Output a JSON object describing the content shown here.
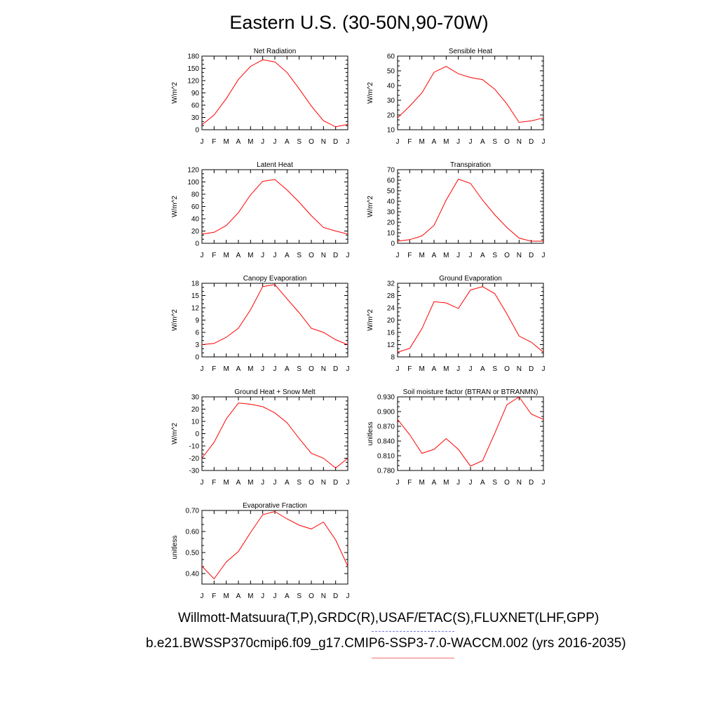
{
  "figure": {
    "title": "Eastern U.S. (30-50N,90-70W)",
    "caption_obs": "Willmott-Matsuura(T,P),GRDC(R),USAF/ETAC(S),FLUXNET(LHF,GPP)",
    "caption_model": "b.e21.BWSSP370cmip6.f09_g17.CMIP6-SSP3-7.0-WACCM.002 (yrs 2016-2035)",
    "colors": {
      "model_line": "#ff0000",
      "obs_legend": "#7a7ae8",
      "model_legend": "#f07070"
    }
  },
  "chart_data": [
    {
      "type": "line",
      "title": "Net Radiation",
      "ylabel": "W/m^2",
      "categories": [
        "J",
        "F",
        "M",
        "A",
        "M",
        "J",
        "J",
        "A",
        "S",
        "O",
        "N",
        "D",
        "J"
      ],
      "values": [
        12,
        36,
        76,
        123,
        155,
        171,
        166,
        140,
        100,
        58,
        22,
        7,
        13
      ],
      "ylim": [
        0,
        180
      ],
      "yticks": [
        "0",
        "30",
        "60",
        "90",
        "120",
        "150",
        "180"
      ],
      "ytick_values": [
        0,
        30,
        60,
        90,
        120,
        150,
        180
      ]
    },
    {
      "type": "line",
      "title": "Sensible Heat",
      "ylabel": "W/m^2",
      "categories": [
        "J",
        "F",
        "M",
        "A",
        "M",
        "J",
        "J",
        "A",
        "S",
        "O",
        "N",
        "D",
        "J"
      ],
      "values": [
        18,
        26,
        35,
        49,
        53,
        48,
        45.5,
        44,
        37.5,
        27.5,
        15,
        16,
        18
      ],
      "ylim": [
        10,
        60
      ],
      "yticks": [
        "10",
        "20",
        "30",
        "40",
        "50",
        "60"
      ],
      "ytick_values": [
        10,
        20,
        30,
        40,
        50,
        60
      ]
    },
    {
      "type": "line",
      "title": "Latent Heat",
      "ylabel": "W/m^2",
      "categories": [
        "J",
        "F",
        "M",
        "A",
        "M",
        "J",
        "J",
        "A",
        "S",
        "O",
        "N",
        "D",
        "J"
      ],
      "values": [
        15,
        18,
        29,
        50,
        79,
        101,
        104,
        87,
        67,
        45,
        26,
        20,
        15
      ],
      "ylim": [
        0,
        120
      ],
      "yticks": [
        "0",
        "20",
        "40",
        "60",
        "80",
        "100",
        "120"
      ],
      "ytick_values": [
        0,
        20,
        40,
        60,
        80,
        100,
        120
      ]
    },
    {
      "type": "line",
      "title": "Transpiration",
      "ylabel": "W/m^2",
      "categories": [
        "J",
        "F",
        "M",
        "A",
        "M",
        "J",
        "J",
        "A",
        "S",
        "O",
        "N",
        "D",
        "J"
      ],
      "values": [
        2,
        3.5,
        7,
        17,
        41,
        61,
        57,
        41,
        27,
        15,
        5,
        2,
        2
      ],
      "ylim": [
        0,
        70
      ],
      "yticks": [
        "0",
        "10",
        "20",
        "30",
        "40",
        "50",
        "60",
        "70"
      ],
      "ytick_values": [
        0,
        10,
        20,
        30,
        40,
        50,
        60,
        70
      ]
    },
    {
      "type": "line",
      "title": "Canopy Evaporation",
      "ylabel": "W/m^2",
      "categories": [
        "J",
        "F",
        "M",
        "A",
        "M",
        "J",
        "J",
        "A",
        "S",
        "O",
        "N",
        "D",
        "J"
      ],
      "values": [
        3,
        3.3,
        4.8,
        7,
        11.5,
        17.2,
        17.7,
        14.2,
        10.8,
        7,
        6,
        4.2,
        3
      ],
      "ylim": [
        0,
        18
      ],
      "yticks": [
        "0",
        "3",
        "6",
        "9",
        "12",
        "15",
        "18"
      ],
      "ytick_values": [
        0,
        3,
        6,
        9,
        12,
        15,
        18
      ]
    },
    {
      "type": "line",
      "title": "Ground Evaporation",
      "ylabel": "W/m^2",
      "categories": [
        "J",
        "F",
        "M",
        "A",
        "M",
        "J",
        "J",
        "A",
        "S",
        "O",
        "N",
        "D",
        "J"
      ],
      "values": [
        9.5,
        10.8,
        17.2,
        26,
        25.6,
        23.8,
        29.8,
        30.9,
        28.6,
        22,
        14.8,
        12.8,
        9.5
      ],
      "ylim": [
        8,
        32
      ],
      "yticks": [
        "8",
        "12",
        "16",
        "20",
        "24",
        "28",
        "32"
      ],
      "ytick_values": [
        8,
        12,
        16,
        20,
        24,
        28,
        32
      ]
    },
    {
      "type": "line",
      "title": "Ground Heat + Snow Melt",
      "ylabel": "W/m^2",
      "categories": [
        "J",
        "F",
        "M",
        "A",
        "M",
        "J",
        "J",
        "A",
        "S",
        "O",
        "N",
        "D",
        "J"
      ],
      "values": [
        -20,
        -7,
        12,
        25,
        24,
        22,
        17,
        9,
        -4,
        -16,
        -20,
        -28,
        -20
      ],
      "ylim": [
        -30,
        30
      ],
      "yticks": [
        "-30",
        "-20",
        "-10",
        "0",
        "10",
        "20",
        "30"
      ],
      "ytick_values": [
        -30,
        -20,
        -10,
        0,
        10,
        20,
        30
      ]
    },
    {
      "type": "line",
      "title": "Soil moisture factor (BTRAN or BTRANMN)",
      "ylabel": "unitless",
      "categories": [
        "J",
        "F",
        "M",
        "A",
        "M",
        "J",
        "J",
        "A",
        "S",
        "O",
        "N",
        "D",
        "J"
      ],
      "values": [
        0.884,
        0.853,
        0.815,
        0.823,
        0.845,
        0.823,
        0.789,
        0.8,
        0.856,
        0.914,
        0.93,
        0.895,
        0.884
      ],
      "ylim": [
        0.78,
        0.93
      ],
      "yticks": [
        "0.780",
        "0.810",
        "0.840",
        "0.870",
        "0.900",
        "0.930"
      ],
      "ytick_values": [
        0.78,
        0.81,
        0.84,
        0.87,
        0.9,
        0.93
      ]
    },
    {
      "type": "line",
      "title": "Evaporative Fraction",
      "ylabel": "unitless",
      "categories": [
        "J",
        "F",
        "M",
        "A",
        "M",
        "J",
        "J",
        "A",
        "S",
        "O",
        "N",
        "D",
        "J"
      ],
      "values": [
        0.435,
        0.375,
        0.455,
        0.505,
        0.595,
        0.68,
        0.695,
        0.66,
        0.63,
        0.612,
        0.645,
        0.56,
        0.435
      ],
      "ylim": [
        0.35,
        0.7
      ],
      "yticks": [
        "0.40",
        "0.50",
        "0.60",
        "0.70"
      ],
      "ytick_values": [
        0.4,
        0.5,
        0.6,
        0.7
      ]
    }
  ]
}
